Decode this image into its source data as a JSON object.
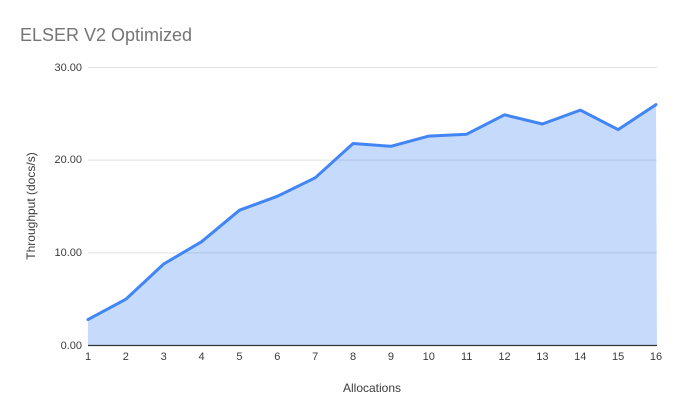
{
  "title": "ELSER V2 Optimized",
  "colors": {
    "accent_blue": "#4285f4",
    "area_fill": "rgba(66,133,244,0.3)",
    "title_text": "#757575",
    "axis_text": "#3c3c3c",
    "gridline": "#e0e0e0",
    "baseline": "#333333",
    "background": "#ffffff"
  },
  "chart_data": {
    "type": "area",
    "title": "ELSER V2 Optimized",
    "xlabel": "Allocations",
    "ylabel": "Throughput (docs/s)",
    "categories": [
      1,
      2,
      3,
      4,
      5,
      6,
      7,
      8,
      9,
      10,
      11,
      12,
      13,
      14,
      15,
      16
    ],
    "xtick_labels": [
      "1",
      "2",
      "3",
      "4",
      "5",
      "6",
      "7",
      "8",
      "9",
      "10",
      "11",
      "12",
      "13",
      "14",
      "15",
      "16"
    ],
    "values": [
      2.8,
      5.0,
      8.8,
      11.2,
      14.6,
      16.1,
      18.1,
      21.8,
      21.5,
      22.6,
      22.8,
      24.9,
      23.9,
      25.4,
      23.3,
      26.0
    ],
    "ylim": [
      0,
      30
    ],
    "yticks": [
      0,
      10,
      20,
      30
    ],
    "ytick_labels": [
      "0.00",
      "10.00",
      "20.00",
      "30.00"
    ],
    "grid": "horizontal",
    "legend": "none",
    "line_color": "#4285f4",
    "line_width": 3,
    "markers": "none"
  }
}
